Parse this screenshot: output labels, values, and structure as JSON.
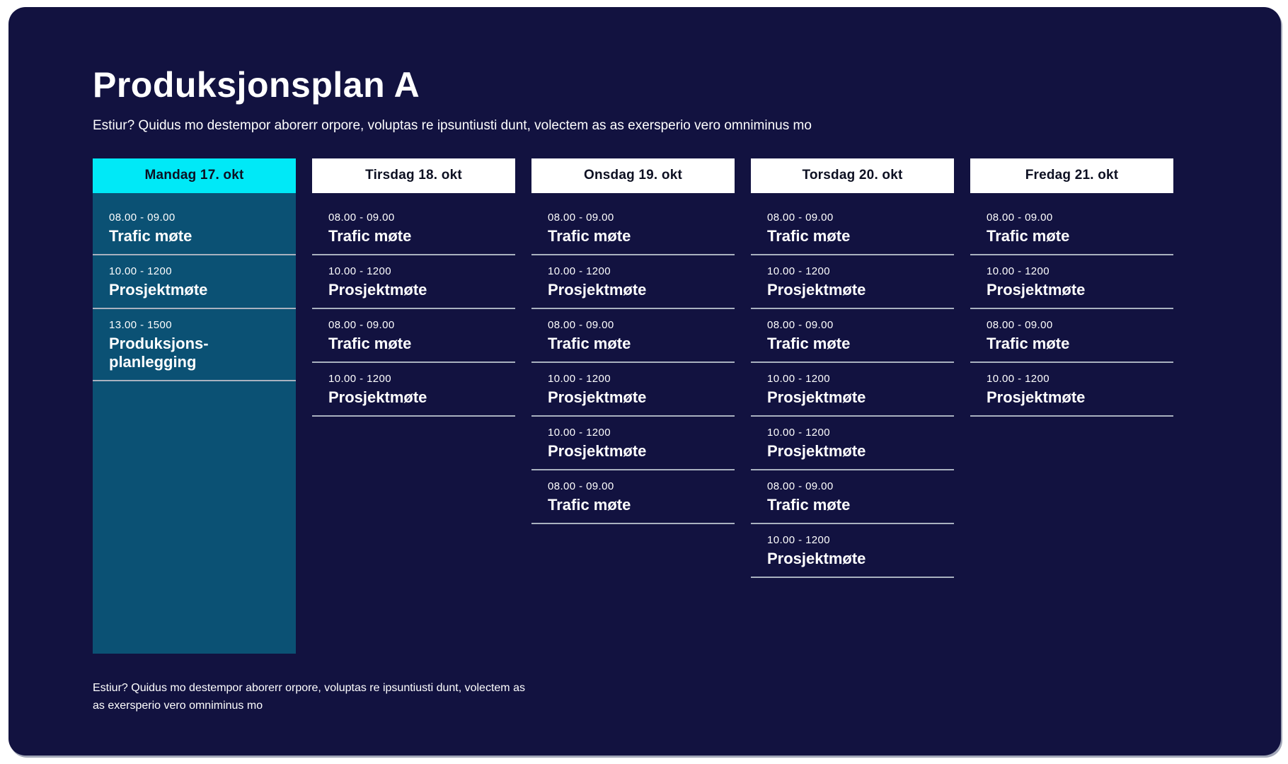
{
  "page": {
    "title": "Produksjonsplan A",
    "subtitle": "Estiur? Quidus mo destempor aborerr orpore, voluptas re ipsuntiusti dunt, volectem as as exersperio vero omniminus mo",
    "footer_line1": "Estiur? Quidus mo destempor aborerr orpore, voluptas re ipsuntiusti dunt, volectem as",
    "footer_line2": "as exersperio vero omniminus mo"
  },
  "colors": {
    "canvas": "#ffffff",
    "panel": "#121240",
    "accent": "#00e9f7",
    "header_bg": "#ffffff",
    "header_text": "#0d1022",
    "highlight_column": "#0b5174",
    "text": "#ffffff",
    "separator": "#a9b1bf"
  },
  "schedule": {
    "days": [
      {
        "label": "Mandag 17. okt",
        "highlighted": true,
        "events": [
          {
            "time": "08.00 - 09.00",
            "title": "Trafic møte"
          },
          {
            "time": "10.00 - 1200",
            "title": "Prosjektmøte"
          },
          {
            "time": "13.00 - 1500",
            "title": "Produksjons-planlegging"
          }
        ]
      },
      {
        "label": "Tirsdag 18. okt",
        "highlighted": false,
        "events": [
          {
            "time": "08.00 - 09.00",
            "title": "Trafic møte"
          },
          {
            "time": "10.00 - 1200",
            "title": "Prosjektmøte"
          },
          {
            "time": "08.00 - 09.00",
            "title": "Trafic møte"
          },
          {
            "time": "10.00 - 1200",
            "title": "Prosjektmøte"
          }
        ]
      },
      {
        "label": "Onsdag 19. okt",
        "highlighted": false,
        "events": [
          {
            "time": "08.00 - 09.00",
            "title": "Trafic møte"
          },
          {
            "time": "10.00 - 1200",
            "title": "Prosjektmøte"
          },
          {
            "time": "08.00 - 09.00",
            "title": "Trafic møte"
          },
          {
            "time": "10.00 - 1200",
            "title": "Prosjektmøte"
          },
          {
            "time": "10.00 - 1200",
            "title": "Prosjektmøte"
          },
          {
            "time": "08.00 - 09.00",
            "title": "Trafic møte"
          }
        ]
      },
      {
        "label": "Torsdag 20. okt",
        "highlighted": false,
        "events": [
          {
            "time": "08.00 - 09.00",
            "title": "Trafic møte"
          },
          {
            "time": "10.00 - 1200",
            "title": "Prosjektmøte"
          },
          {
            "time": "08.00 - 09.00",
            "title": "Trafic møte"
          },
          {
            "time": "10.00 - 1200",
            "title": "Prosjektmøte"
          },
          {
            "time": "10.00 - 1200",
            "title": "Prosjektmøte"
          },
          {
            "time": "08.00 - 09.00",
            "title": "Trafic møte"
          },
          {
            "time": "10.00 - 1200",
            "title": "Prosjektmøte"
          }
        ]
      },
      {
        "label": "Fredag 21. okt",
        "highlighted": false,
        "events": [
          {
            "time": "08.00 - 09.00",
            "title": "Trafic møte"
          },
          {
            "time": "10.00 - 1200",
            "title": "Prosjektmøte"
          },
          {
            "time": "08.00 - 09.00",
            "title": "Trafic møte"
          },
          {
            "time": "10.00 - 1200",
            "title": "Prosjektmøte"
          }
        ]
      }
    ]
  }
}
